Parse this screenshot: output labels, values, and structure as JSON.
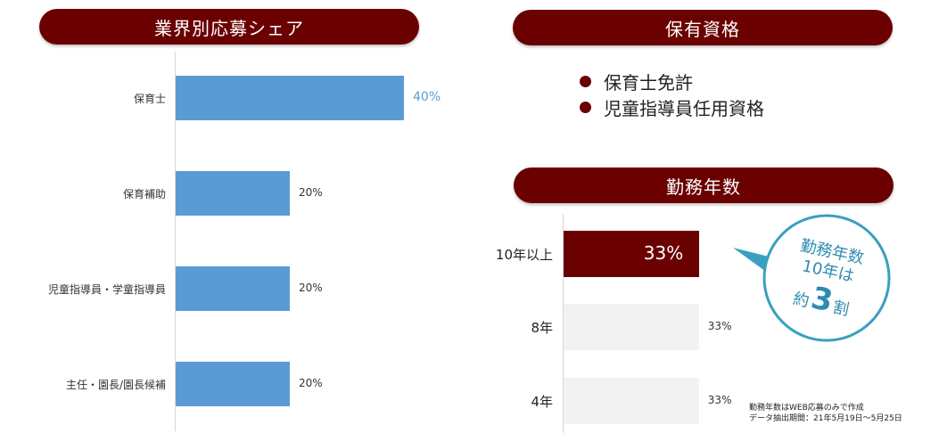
{
  "left_panel": {
    "title": "業界別応募シェア"
  },
  "qualifications": {
    "title": "保有資格",
    "items": [
      "保育士免許",
      "児童指導員任用資格"
    ]
  },
  "tenure_panel": {
    "title": "勤務年数"
  },
  "callout": {
    "line1": "勤務年数",
    "line2": "10年は",
    "prefix": "約",
    "number": "3",
    "suffix": "割"
  },
  "note": {
    "line1": "勤務年数はWEB応募のみで作成",
    "line2": "データ抽出期間：21年5月19日～5月25日"
  },
  "colors": {
    "dark_red": "#6b0000",
    "bar_blue": "#5b9bd5",
    "gray_bar": "#f2f2f2",
    "callout_teal": "#3a9fc0"
  },
  "chart_data": [
    {
      "type": "bar",
      "orientation": "horizontal",
      "title": "業界別応募シェア",
      "categories": [
        "保育士",
        "保育補助",
        "児童指導員・学童指導員",
        "主任・園長/園長候補"
      ],
      "values": [
        40,
        20,
        20,
        20
      ],
      "value_labels": [
        "40%",
        "20%",
        "20%",
        "20%"
      ],
      "unit": "%",
      "xlim": [
        0,
        100
      ],
      "highlight_index": 0
    },
    {
      "type": "bar",
      "orientation": "horizontal",
      "title": "勤務年数",
      "categories": [
        "10年以上",
        "8年",
        "4年"
      ],
      "values": [
        33,
        33,
        33
      ],
      "value_labels": [
        "33%",
        "33%",
        "33%"
      ],
      "unit": "%",
      "xlim": [
        0,
        100
      ],
      "highlight_index": 0
    }
  ]
}
